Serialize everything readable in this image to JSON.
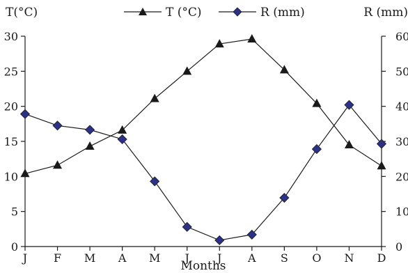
{
  "chart_data": {
    "type": "line",
    "categories": [
      "J",
      "F",
      "M",
      "A",
      "M",
      "J",
      "J",
      "A",
      "S",
      "O",
      "N",
      "D"
    ],
    "xlabel": "Months",
    "y_left": {
      "label": "T(°C)",
      "ticks": [
        "0",
        "5",
        "10",
        "15",
        "20",
        "25",
        "30"
      ],
      "ylim": [
        0,
        30
      ]
    },
    "y_right": {
      "label": "R (mm)",
      "ticks": [
        "0",
        "10",
        "20",
        "30",
        "40",
        "50",
        "60"
      ],
      "ylim": [
        0,
        60
      ]
    },
    "legend_position": "top-center",
    "grid": false,
    "series": [
      {
        "name": "T (°C)",
        "axis": "left",
        "marker": "triangle",
        "color": "#1a1a1a",
        "values": [
          10.4,
          11.6,
          14.3,
          16.6,
          21.1,
          25.0,
          28.9,
          29.6,
          25.2,
          20.4,
          14.5,
          11.5
        ]
      },
      {
        "name": "R (mm)",
        "axis": "right",
        "marker": "diamond",
        "color": "#2b3285",
        "values": [
          37.8,
          34.5,
          33.3,
          30.6,
          18.6,
          5.6,
          1.8,
          3.4,
          13.9,
          27.8,
          40.4,
          29.3
        ]
      }
    ]
  }
}
